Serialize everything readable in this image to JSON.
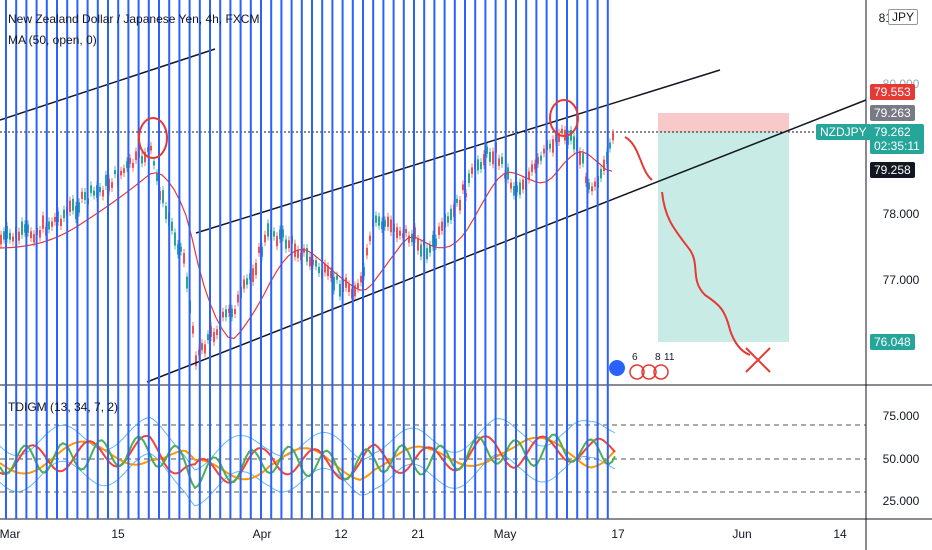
{
  "header": {
    "title": "New Zealand Dollar / Japanese Yen, 4h, FXCM",
    "indicator_ma": "MA (50, open, 0)",
    "indicator_osc": "TDIGM (13, 34, 7, 2)"
  },
  "price_axis": {
    "currency_badge": "JPY",
    "top_label": "81",
    "labels": [
      "78.000",
      "77.000"
    ]
  },
  "price_tags": {
    "tag_red": "79.553",
    "tag_grey": "79.263",
    "symbol": "NZDJPY",
    "current_price": "79.262",
    "countdown": "02:35:11",
    "tag_black": "79.258",
    "tag_target": "76.048",
    "partial": "80.000"
  },
  "osc_axis": {
    "labels": [
      "75.000",
      "50.000",
      "25.000"
    ]
  },
  "time_axis": {
    "labels": [
      "Mar",
      "15",
      "Apr",
      "12",
      "21",
      "May",
      "17",
      "Jun",
      "14"
    ]
  },
  "event_markers": {
    "a": "6",
    "b": "8",
    "c": "11"
  },
  "colors": {
    "vertical_lines": "#2962ff",
    "ma_line": "#e53935",
    "candle_up": "#26a69a",
    "candle_down": "#ef5350",
    "stop_zone": "#f8c9c9",
    "target_zone": "#c8ebe5",
    "symbol_tag": "#26a69a",
    "osc_green": "#4caf50",
    "osc_red": "#f44336",
    "osc_orange": "#ff9800",
    "osc_band": "#64b5f6"
  }
}
